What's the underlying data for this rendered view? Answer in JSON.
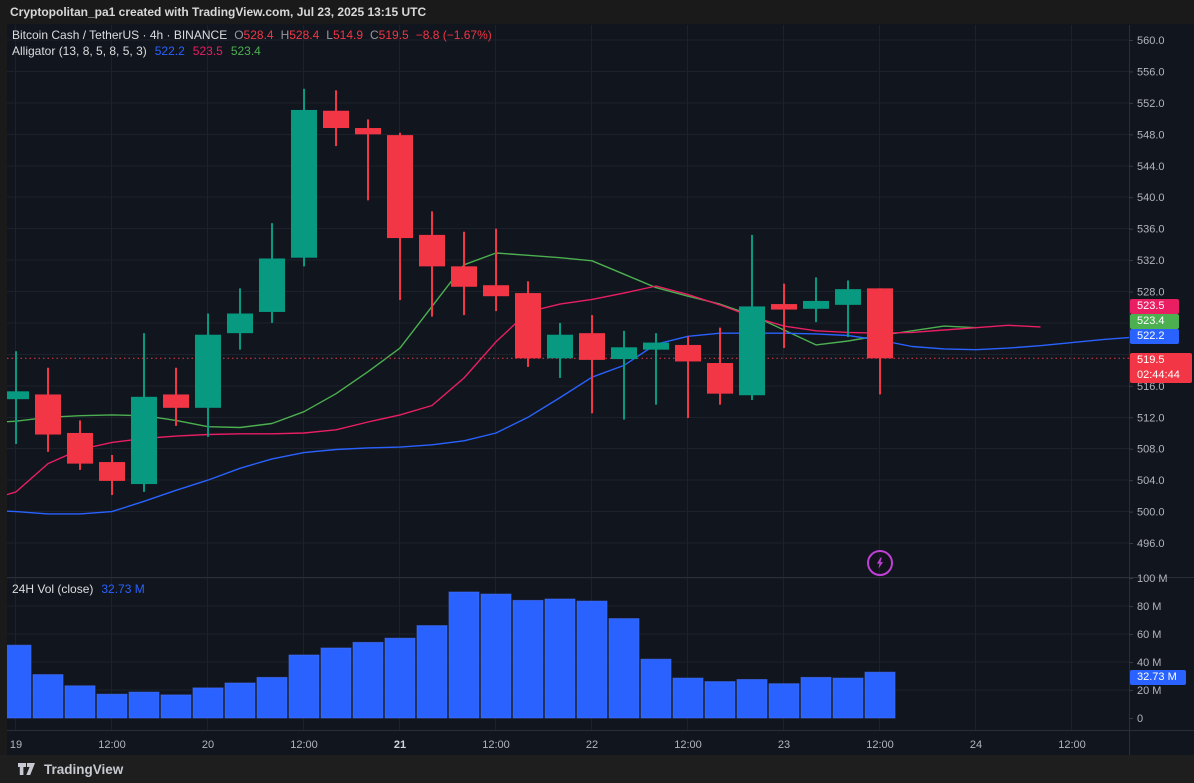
{
  "window": {
    "title": "Cryptopolitan_pa1 created with TradingView.com, Jul 23, 2025 13:15 UTC"
  },
  "header": {
    "symbol_line": "Bitcoin Cash / TetherUS · 4h · BINANCE",
    "ohlc": {
      "o_label": "O",
      "o_value": "528.4",
      "h_label": "H",
      "h_value": "528.4",
      "l_label": "L",
      "l_value": "514.9",
      "c_label": "C",
      "c_value": "519.5",
      "change": "−8.8 (−1.67%)"
    },
    "indicator": {
      "name": "Alligator (13, 8, 5, 8, 5, 3)",
      "jaw_value": "522.2",
      "teeth_value": "523.5",
      "lips_value": "523.4"
    }
  },
  "volume_panel": {
    "label": "24H Vol (close)",
    "value": "32.73 M"
  },
  "price_axis": {
    "teeth_badge": "523.5",
    "lips_badge": "523.4",
    "jaw_badge": "522.2",
    "last": {
      "price": "519.5",
      "countdown": "02:44:44"
    },
    "volume_badge": "32.73 M"
  },
  "footer": {
    "brand": "TradingView"
  },
  "colors": {
    "background": "#11151e",
    "frame": "#1a1a1a",
    "footer_bg": "#1e1e1e",
    "grid": "#1c212b",
    "axis_border": "#2a2e39",
    "axis_text": "#b2b5be",
    "axis_text_bold": "#d1d4dc",
    "text_primary": "#dcdde0",
    "text_muted": "#9598a1",
    "up": "#089981",
    "down": "#f23645",
    "volume": "#2962ff",
    "volume_edge": "#4a74ff",
    "jaw": "#2962ff",
    "teeth": "#e91e63",
    "lips": "#4caf50",
    "marker": "#bf40d6"
  },
  "chart_data": {
    "type": "candlestick",
    "title": "Bitcoin Cash / TetherUS · 4h · BINANCE",
    "interval": "4h",
    "exchange": "BINANCE",
    "start_time": "Jul 19 00:00 UTC",
    "interval_hours": 4,
    "price_axis_ticks_labeled": [
      560,
      556,
      552,
      548,
      544,
      540,
      536,
      532,
      528,
      516,
      512,
      508,
      504,
      500,
      496
    ],
    "price_gridlines": [
      560,
      556,
      552,
      548,
      544,
      540,
      536,
      532,
      528,
      524,
      520,
      516,
      512,
      508,
      504,
      500,
      496
    ],
    "price_range_visible": [
      493,
      562
    ],
    "volume_axis_ticks": [
      {
        "v": 100,
        "label": "100 M"
      },
      {
        "v": 80,
        "label": "80 M"
      },
      {
        "v": 60,
        "label": "60 M"
      },
      {
        "v": 40,
        "label": "40 M"
      },
      {
        "v": 20,
        "label": "20 M"
      },
      {
        "v": 0,
        "label": "0"
      }
    ],
    "time_ticks": [
      {
        "index": 1,
        "label": "19",
        "bold": false
      },
      {
        "index": 4,
        "label": "12:00",
        "bold": false
      },
      {
        "index": 7,
        "label": "20",
        "bold": false
      },
      {
        "index": 10,
        "label": "12:00",
        "bold": false
      },
      {
        "index": 13,
        "label": "21",
        "bold": true
      },
      {
        "index": 16,
        "label": "12:00",
        "bold": false
      },
      {
        "index": 19,
        "label": "22",
        "bold": false
      },
      {
        "index": 22,
        "label": "12:00",
        "bold": false
      },
      {
        "index": 25,
        "label": "23",
        "bold": false
      },
      {
        "index": 28,
        "label": "12:00",
        "bold": false
      },
      {
        "index": 31,
        "label": "24",
        "bold": false
      },
      {
        "index": 34,
        "label": "12:00",
        "bold": false
      }
    ],
    "candles": [
      {
        "o": 514.3,
        "h": 520.4,
        "l": 508.6,
        "c": 515.3,
        "vol_m": 52
      },
      {
        "o": 514.9,
        "h": 518.3,
        "l": 507.6,
        "c": 509.8,
        "vol_m": 31
      },
      {
        "o": 510.0,
        "h": 511.6,
        "l": 505.3,
        "c": 506.1,
        "vol_m": 23
      },
      {
        "o": 506.3,
        "h": 507.2,
        "l": 502.1,
        "c": 503.9,
        "vol_m": 17
      },
      {
        "o": 503.5,
        "h": 522.7,
        "l": 502.5,
        "c": 514.6,
        "vol_m": 18.5
      },
      {
        "o": 514.9,
        "h": 518.3,
        "l": 510.9,
        "c": 513.2,
        "vol_m": 16.5
      },
      {
        "o": 513.2,
        "h": 525.2,
        "l": 509.5,
        "c": 522.5,
        "vol_m": 21.5
      },
      {
        "o": 522.7,
        "h": 528.4,
        "l": 520.6,
        "c": 525.2,
        "vol_m": 25
      },
      {
        "o": 525.4,
        "h": 536.7,
        "l": 524.0,
        "c": 532.2,
        "vol_m": 29
      },
      {
        "o": 532.3,
        "h": 553.8,
        "l": 531.2,
        "c": 551.1,
        "vol_m": 45
      },
      {
        "o": 551.0,
        "h": 553.6,
        "l": 546.5,
        "c": 548.8,
        "vol_m": 50
      },
      {
        "o": 548.8,
        "h": 549.9,
        "l": 539.6,
        "c": 548.0,
        "vol_m": 54
      },
      {
        "o": 547.9,
        "h": 548.2,
        "l": 526.9,
        "c": 534.8,
        "vol_m": 57
      },
      {
        "o": 535.2,
        "h": 538.2,
        "l": 524.8,
        "c": 531.2,
        "vol_m": 66
      },
      {
        "o": 531.2,
        "h": 535.6,
        "l": 525.0,
        "c": 528.6,
        "vol_m": 90
      },
      {
        "o": 528.8,
        "h": 536.0,
        "l": 525.5,
        "c": 527.4,
        "vol_m": 88.5
      },
      {
        "o": 527.8,
        "h": 529.3,
        "l": 518.4,
        "c": 519.5,
        "vol_m": 84
      },
      {
        "o": 519.5,
        "h": 524.0,
        "l": 517.0,
        "c": 522.5,
        "vol_m": 85
      },
      {
        "o": 522.7,
        "h": 525.0,
        "l": 512.5,
        "c": 519.3,
        "vol_m": 83.5
      },
      {
        "o": 519.4,
        "h": 523.0,
        "l": 511.7,
        "c": 520.9,
        "vol_m": 71
      },
      {
        "o": 520.6,
        "h": 522.7,
        "l": 513.6,
        "c": 521.5,
        "vol_m": 42
      },
      {
        "o": 521.2,
        "h": 522.3,
        "l": 511.9,
        "c": 519.1,
        "vol_m": 28.5
      },
      {
        "o": 518.9,
        "h": 523.4,
        "l": 513.6,
        "c": 515.0,
        "vol_m": 26
      },
      {
        "o": 514.8,
        "h": 535.2,
        "l": 514.2,
        "c": 526.1,
        "vol_m": 27.5
      },
      {
        "o": 526.4,
        "h": 529.0,
        "l": 520.8,
        "c": 525.7,
        "vol_m": 24.5
      },
      {
        "o": 525.8,
        "h": 529.8,
        "l": 524.1,
        "c": 526.8,
        "vol_m": 29
      },
      {
        "o": 526.3,
        "h": 529.4,
        "l": 522.2,
        "c": 528.3,
        "vol_m": 28.5
      },
      {
        "o": 528.4,
        "h": 528.4,
        "l": 514.9,
        "c": 519.5,
        "vol_m": 32.73
      }
    ],
    "last_price": {
      "value": 519.5,
      "direction": "down",
      "countdown": "02:44:44"
    },
    "volume_last": 32.73,
    "alligator": {
      "params": "13, 8, 5, 8, 5, 3",
      "jaw": {
        "current": 522.2,
        "start_index": 0,
        "values": [
          500.2,
          500.0,
          499.7,
          499.7,
          500.0,
          501.3,
          502.7,
          504.0,
          505.5,
          506.7,
          507.5,
          507.9,
          508.1,
          508.2,
          508.5,
          509.0,
          510.0,
          512.0,
          514.5,
          517.1,
          518.6,
          521.3,
          522.3,
          522.7,
          522.7,
          522.7,
          522.6,
          522.4,
          521.8,
          521.0,
          520.7,
          520.6,
          520.8,
          521.1,
          521.5,
          521.9,
          522.2
        ]
      },
      "teeth": {
        "current": 523.5,
        "start_index": 0,
        "values": [
          501.3,
          502.5,
          506.1,
          507.9,
          508.8,
          509.3,
          509.6,
          509.8,
          509.9,
          509.9,
          510.0,
          510.4,
          511.4,
          512.3,
          513.5,
          517.0,
          521.6,
          525.4,
          526.4,
          527.0,
          527.8,
          528.7,
          527.6,
          526.3,
          524.8,
          523.6,
          523.0,
          522.8,
          522.7,
          522.8,
          523.1,
          523.4,
          523.7,
          523.5
        ]
      },
      "lips": {
        "current": 523.4,
        "start_index": 0,
        "values": [
          511.3,
          511.5,
          512.0,
          512.2,
          512.3,
          512.2,
          511.6,
          510.8,
          510.7,
          511.2,
          512.7,
          515.0,
          517.8,
          520.8,
          526.1,
          531.4,
          532.9,
          532.6,
          532.3,
          531.9,
          530.2,
          528.5,
          527.4,
          526.4,
          525.0,
          523.1,
          521.2,
          521.7,
          522.4,
          523.0,
          523.6,
          523.4
        ]
      }
    },
    "event_marker": {
      "candle_index": 28,
      "price": 493.5,
      "icon": "lightning-bolt"
    }
  }
}
